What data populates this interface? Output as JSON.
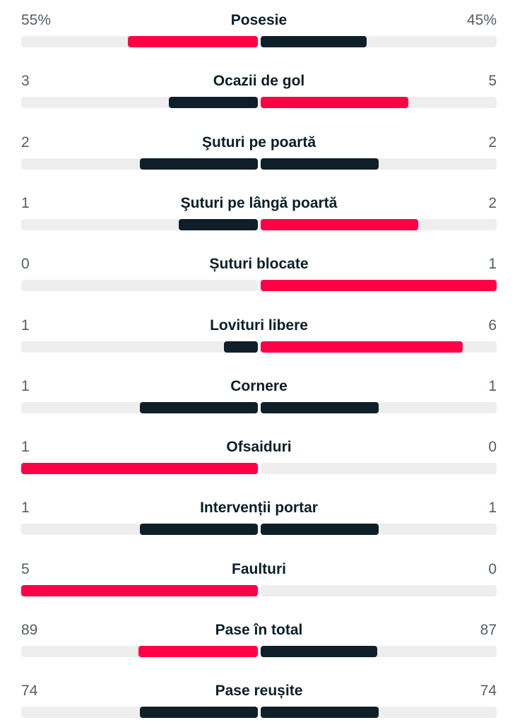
{
  "colors": {
    "leader": "#ff0046",
    "other": "#0f1f29",
    "track": "#eeeeee"
  },
  "stats": [
    {
      "label": "Posesie",
      "home": "55%",
      "away": "45%"
    },
    {
      "label": "Ocazii de gol",
      "home": "3",
      "away": "5"
    },
    {
      "label": "Şuturi pe poartă",
      "home": "2",
      "away": "2"
    },
    {
      "label": "Şuturi pe lângă poartă",
      "home": "1",
      "away": "2"
    },
    {
      "label": "Șuturi blocate",
      "home": "0",
      "away": "1"
    },
    {
      "label": "Lovituri libere",
      "home": "1",
      "away": "6"
    },
    {
      "label": "Cornere",
      "home": "1",
      "away": "1"
    },
    {
      "label": "Ofsaiduri",
      "home": "1",
      "away": "0"
    },
    {
      "label": "Intervenții portar",
      "home": "1",
      "away": "1"
    },
    {
      "label": "Faulturi",
      "home": "5",
      "away": "0"
    },
    {
      "label": "Pase în total",
      "home": "89",
      "away": "87"
    },
    {
      "label": "Pase reușite",
      "home": "74",
      "away": "74"
    }
  ]
}
